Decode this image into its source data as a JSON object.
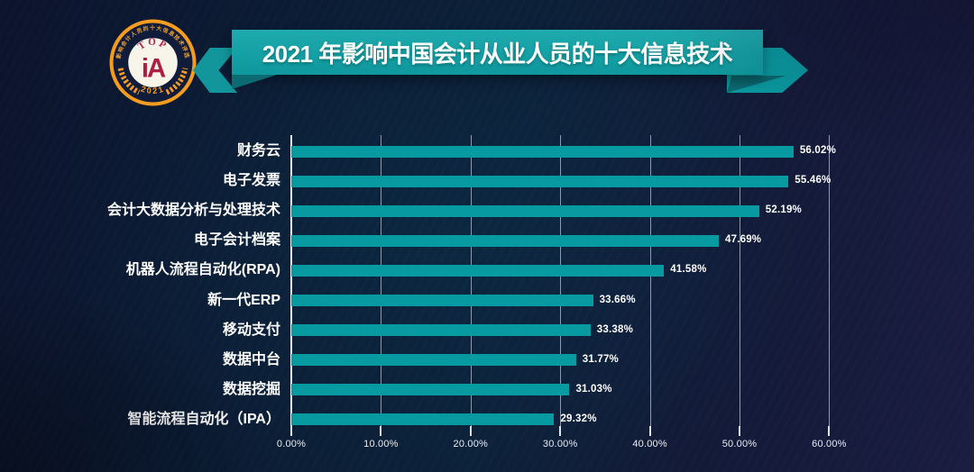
{
  "badge": {
    "ring_text": "影响会计人员的十大信息技术评选",
    "top_text": "TOP",
    "center_text": "iA",
    "year": "2021"
  },
  "header": {
    "title": "2021 年影响中国会计从业人员的十大信息技术"
  },
  "chart_data": {
    "type": "bar",
    "orientation": "horizontal",
    "title": "2021 年影响中国会计从业人员的十大信息技术",
    "categories": [
      "财务云",
      "电子发票",
      "会计大数据分析与处理技术",
      "电子会计档案",
      "机器人流程自动化(RPA)",
      "新一代ERP",
      "移动支付",
      "数据中台",
      "数据挖掘",
      "智能流程自动化（IPA）"
    ],
    "values": [
      56.02,
      55.46,
      52.19,
      47.69,
      41.58,
      33.66,
      33.38,
      31.77,
      31.03,
      29.32
    ],
    "value_labels": [
      "56.02%",
      "55.46%",
      "52.19%",
      "47.69%",
      "41.58%",
      "33.66%",
      "33.38%",
      "31.77%",
      "31.03%",
      "29.32%"
    ],
    "x_ticks": [
      "0.00%",
      "10.00%",
      "20.00%",
      "30.00%",
      "40.00%",
      "50.00%",
      "60.00%"
    ],
    "x_tick_values": [
      0,
      10,
      20,
      30,
      40,
      50,
      60
    ],
    "xlim": [
      0,
      60
    ],
    "grid": true,
    "legend": false
  },
  "colors": {
    "background_dark_navy": "#0c1c36",
    "background_purple_edge": "#1a1c40",
    "bar_teal": "#079aa0",
    "banner_teal": "#14a0a4",
    "fold_dark_teal": "#0b6a72",
    "grid_gray": "#bac2cf",
    "axis_white": "#eef2f7",
    "text_white": "#ffffff",
    "badge_orange": "#f49c1e",
    "badge_crimson": "#b3224a"
  }
}
